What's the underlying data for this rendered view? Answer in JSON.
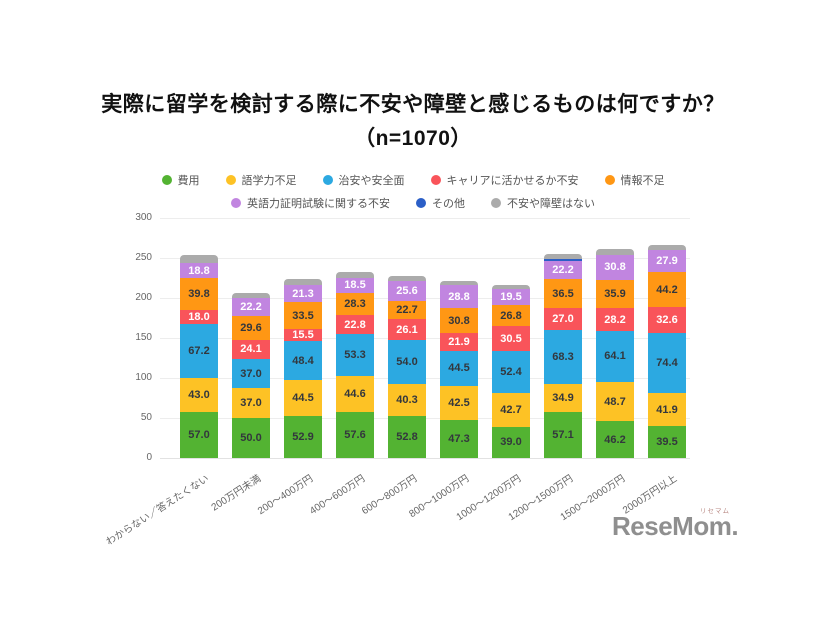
{
  "title": {
    "line1": "実際に留学を検討する際に不安や障壁と感じるものは何ですか？",
    "line2": "（n=1070）"
  },
  "chart_data": {
    "type": "bar",
    "subtype": "stacked-vertical",
    "title": "実際に留学を検討する際に不安や障壁と感じるものは何ですか？（n=1070）",
    "xlabel": "",
    "ylabel": "",
    "ylim": [
      0,
      300
    ],
    "yticks": [
      0,
      50,
      100,
      150,
      200,
      250,
      300
    ],
    "grid": true,
    "legend_position": "top",
    "legend_row_split": 5,
    "categories": [
      "わからない／答えたくない",
      "200万円未満",
      "200〜400万円",
      "400〜600万円",
      "600〜800万円",
      "800〜1000万円",
      "1000〜1200万円",
      "1200〜1500万円",
      "1500〜2000万円",
      "2000万円以上"
    ],
    "series": [
      {
        "key": "cost",
        "name": "費用",
        "color": "#53b332",
        "label_color": "#33373d",
        "values": [
          57.0,
          50.0,
          52.9,
          57.6,
          52.8,
          47.3,
          39.0,
          57.1,
          46.2,
          39.5
        ]
      },
      {
        "key": "language-skill",
        "name": "語学力不足",
        "color": "#fdc225",
        "label_color": "#33373d",
        "values": [
          43.0,
          37.0,
          44.5,
          44.6,
          40.3,
          42.5,
          42.7,
          34.9,
          48.7,
          41.9
        ]
      },
      {
        "key": "safety",
        "name": "治安や安全面",
        "color": "#2ca9e1",
        "label_color": "#33373d",
        "values": [
          67.2,
          37.0,
          48.4,
          53.3,
          54.0,
          44.5,
          52.4,
          68.3,
          64.1,
          74.4
        ]
      },
      {
        "key": "career",
        "name": "キャリアに活かせるか不安",
        "color": "#f9545a",
        "label_color": "#ffffff",
        "values": [
          18.0,
          24.1,
          15.5,
          22.8,
          26.1,
          21.9,
          30.5,
          27.0,
          28.2,
          32.6
        ]
      },
      {
        "key": "information",
        "name": "情報不足",
        "color": "#ff9714",
        "label_color": "#33373d",
        "values": [
          39.8,
          29.6,
          33.5,
          28.3,
          22.7,
          30.8,
          26.8,
          36.5,
          35.9,
          44.2
        ]
      },
      {
        "key": "english-test",
        "name": "英語力証明試験に関する不安",
        "color": "#c185e0",
        "label_color": "#ffffff",
        "values": [
          18.8,
          22.2,
          21.3,
          18.5,
          25.6,
          28.8,
          19.5,
          22.2,
          30.8,
          27.9
        ]
      },
      {
        "key": "other",
        "name": "その他",
        "color": "#2b5fc7",
        "label_color": "#ffffff",
        "values": [
          0,
          0,
          0,
          0,
          0,
          0,
          0,
          2.5,
          0,
          0
        ]
      },
      {
        "key": "no-concern",
        "name": "不安や障壁はない",
        "color": "#ababab",
        "label_color": "#ffffff",
        "values": [
          10.5,
          6.5,
          7.5,
          8.0,
          6.0,
          5.0,
          5.5,
          6.0,
          8.0,
          5.5
        ]
      }
    ]
  },
  "branding": {
    "logo_text": "ReseMom.",
    "logo_ruby": "リセマム"
  }
}
